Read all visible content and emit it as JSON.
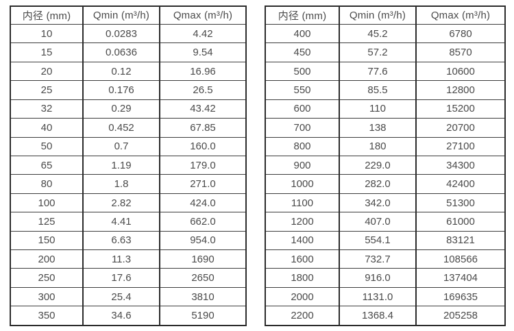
{
  "page": {
    "background_color": "#ffffff",
    "border_color": "#2b2b2b",
    "text_color": "#4a4a4a",
    "description": "Two side-by-side specification tables listing inner diameter versus minimum and maximum flow rate"
  },
  "tables": [
    {
      "name": "flow-table-small-diameters",
      "headers": [
        "内径 (mm)",
        "Qmin (m³/h)",
        "Qmax (m³/h)"
      ],
      "rows": [
        [
          "10",
          "0.0283",
          "4.42"
        ],
        [
          "15",
          "0.0636",
          "9.54"
        ],
        [
          "20",
          "0.12",
          "16.96"
        ],
        [
          "25",
          "0.176",
          "26.5"
        ],
        [
          "32",
          "0.29",
          "43.42"
        ],
        [
          "40",
          "0.452",
          "67.85"
        ],
        [
          "50",
          "0.7",
          "160.0"
        ],
        [
          "65",
          "1.19",
          "179.0"
        ],
        [
          "80",
          "1.8",
          "271.0"
        ],
        [
          "100",
          "2.82",
          "424.0"
        ],
        [
          "125",
          "4.41",
          "662.0"
        ],
        [
          "150",
          "6.63",
          "954.0"
        ],
        [
          "200",
          "11.3",
          "1690"
        ],
        [
          "250",
          "17.6",
          "2650"
        ],
        [
          "300",
          "25.4",
          "3810"
        ],
        [
          "350",
          "34.6",
          "5190"
        ]
      ]
    },
    {
      "name": "flow-table-large-diameters",
      "headers": [
        "内径 (mm)",
        "Qmin (m³/h)",
        "Qmax (m³/h)"
      ],
      "rows": [
        [
          "400",
          "45.2",
          "6780"
        ],
        [
          "450",
          "57.2",
          "8570"
        ],
        [
          "500",
          "77.6",
          "10600"
        ],
        [
          "550",
          "85.5",
          "12800"
        ],
        [
          "600",
          "110",
          "15200"
        ],
        [
          "700",
          "138",
          "20700"
        ],
        [
          "800",
          "180",
          "27100"
        ],
        [
          "900",
          "229.0",
          "34300"
        ],
        [
          "1000",
          "282.0",
          "42400"
        ],
        [
          "1100",
          "342.0",
          "51300"
        ],
        [
          "1200",
          "407.0",
          "61000"
        ],
        [
          "1400",
          "554.1",
          "83121"
        ],
        [
          "1600",
          "732.7",
          "108566"
        ],
        [
          "1800",
          "916.0",
          "137404"
        ],
        [
          "2000",
          "1131.0",
          "169635"
        ],
        [
          "2200",
          "1368.4",
          "205258"
        ]
      ]
    }
  ]
}
